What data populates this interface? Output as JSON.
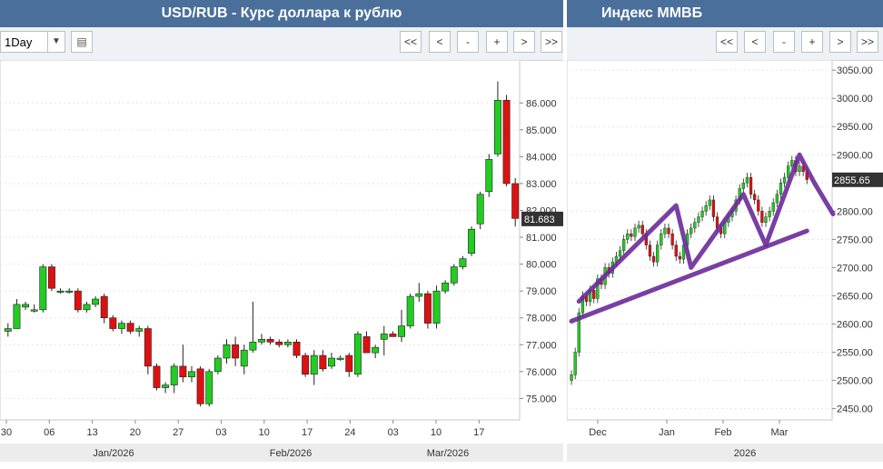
{
  "left_chart": {
    "title": "USD/RUB - Курс доллара к рублю",
    "interval": "1Day",
    "nav_buttons": [
      "<<",
      "<",
      "-",
      "+",
      ">",
      ">>"
    ],
    "day_labels": [
      "30",
      "06",
      "13",
      "20",
      "27",
      "03",
      "10",
      "17",
      "24",
      "03",
      "10",
      "17"
    ],
    "month_labels": [
      "Jan/2026",
      "Feb/2026",
      "Mar/2026"
    ],
    "last_price": "81.683",
    "colors": {
      "up": "#22cc22",
      "down": "#dd1111",
      "price_tag": "#333333"
    }
  },
  "right_chart": {
    "title": "Индекс ММВБ",
    "nav_buttons": [
      "<<",
      "<",
      "-",
      "+",
      ">",
      ">>"
    ],
    "month_labels": [
      "Dec",
      "Jan",
      "Feb",
      "Mar"
    ],
    "year_label": "2026",
    "last_price": "2855.65",
    "colors": {
      "up": "#22cc22",
      "down": "#dd1111",
      "annotation": "#6a2a9a"
    }
  },
  "chart_data": [
    {
      "type": "candlestick",
      "title": "USD/RUB - Курс доллара к рублю",
      "y_ticks": [
        "75.000",
        "76.000",
        "77.000",
        "78.000",
        "79.000",
        "80.000",
        "81.000",
        "82.000",
        "83.000",
        "84.000",
        "85.000",
        "86.000"
      ],
      "ylim": [
        74.2,
        87.6
      ],
      "x_ticks": [
        "30",
        "06",
        "13",
        "20",
        "27",
        "03",
        "10",
        "17",
        "24",
        "03",
        "10",
        "17"
      ],
      "x_months": [
        "Jan/2026",
        "Feb/2026",
        "Mar/2026"
      ],
      "candles": [
        {
          "o": 77.5,
          "h": 77.8,
          "l": 77.3,
          "c": 77.6
        },
        {
          "o": 77.6,
          "h": 78.7,
          "l": 77.6,
          "c": 78.5
        },
        {
          "o": 78.4,
          "h": 78.6,
          "l": 78.3,
          "c": 78.5
        },
        {
          "o": 78.3,
          "h": 78.5,
          "l": 78.2,
          "c": 78.3
        },
        {
          "o": 78.3,
          "h": 80.0,
          "l": 78.2,
          "c": 79.9
        },
        {
          "o": 79.9,
          "h": 80.0,
          "l": 79.0,
          "c": 79.1
        },
        {
          "o": 79.0,
          "h": 79.1,
          "l": 78.9,
          "c": 79.0
        },
        {
          "o": 79.0,
          "h": 79.1,
          "l": 78.9,
          "c": 79.0
        },
        {
          "o": 79.0,
          "h": 79.1,
          "l": 78.2,
          "c": 78.3
        },
        {
          "o": 78.3,
          "h": 78.6,
          "l": 78.2,
          "c": 78.5
        },
        {
          "o": 78.5,
          "h": 78.8,
          "l": 78.4,
          "c": 78.7
        },
        {
          "o": 78.8,
          "h": 78.9,
          "l": 77.8,
          "c": 78.0
        },
        {
          "o": 78.0,
          "h": 78.1,
          "l": 77.5,
          "c": 77.6
        },
        {
          "o": 77.6,
          "h": 77.9,
          "l": 77.4,
          "c": 77.8
        },
        {
          "o": 77.8,
          "h": 77.9,
          "l": 77.4,
          "c": 77.5
        },
        {
          "o": 77.5,
          "h": 77.7,
          "l": 77.3,
          "c": 77.6
        },
        {
          "o": 77.6,
          "h": 77.7,
          "l": 75.9,
          "c": 76.2
        },
        {
          "o": 76.2,
          "h": 76.3,
          "l": 75.3,
          "c": 75.4
        },
        {
          "o": 75.4,
          "h": 75.6,
          "l": 75.2,
          "c": 75.5
        },
        {
          "o": 75.5,
          "h": 76.3,
          "l": 75.2,
          "c": 76.2
        },
        {
          "o": 76.2,
          "h": 77.0,
          "l": 75.6,
          "c": 75.8
        },
        {
          "o": 75.8,
          "h": 76.2,
          "l": 75.6,
          "c": 76.0
        },
        {
          "o": 76.1,
          "h": 76.2,
          "l": 74.7,
          "c": 74.8
        },
        {
          "o": 74.8,
          "h": 76.1,
          "l": 74.7,
          "c": 76.0
        },
        {
          "o": 76.0,
          "h": 76.6,
          "l": 75.9,
          "c": 76.5
        },
        {
          "o": 76.5,
          "h": 77.2,
          "l": 76.3,
          "c": 77.0
        },
        {
          "o": 77.0,
          "h": 77.3,
          "l": 76.2,
          "c": 76.5
        },
        {
          "o": 76.2,
          "h": 77.0,
          "l": 75.9,
          "c": 76.8
        },
        {
          "o": 76.8,
          "h": 78.6,
          "l": 76.7,
          "c": 77.1
        },
        {
          "o": 77.1,
          "h": 77.4,
          "l": 77.0,
          "c": 77.2
        },
        {
          "o": 77.2,
          "h": 77.3,
          "l": 77.0,
          "c": 77.1
        },
        {
          "o": 77.1,
          "h": 77.2,
          "l": 76.9,
          "c": 77.0
        },
        {
          "o": 77.0,
          "h": 77.2,
          "l": 76.9,
          "c": 77.1
        },
        {
          "o": 77.1,
          "h": 77.2,
          "l": 76.5,
          "c": 76.6
        },
        {
          "o": 76.6,
          "h": 76.7,
          "l": 75.8,
          "c": 75.9
        },
        {
          "o": 75.9,
          "h": 76.8,
          "l": 75.5,
          "c": 76.6
        },
        {
          "o": 76.6,
          "h": 76.8,
          "l": 76.0,
          "c": 76.1
        },
        {
          "o": 76.2,
          "h": 76.7,
          "l": 76.1,
          "c": 76.5
        },
        {
          "o": 76.5,
          "h": 76.6,
          "l": 76.4,
          "c": 76.5
        },
        {
          "o": 76.6,
          "h": 76.7,
          "l": 75.8,
          "c": 76.0
        },
        {
          "o": 75.9,
          "h": 77.5,
          "l": 75.8,
          "c": 77.4
        },
        {
          "o": 77.3,
          "h": 77.5,
          "l": 76.7,
          "c": 76.7
        },
        {
          "o": 76.7,
          "h": 77.0,
          "l": 76.5,
          "c": 76.9
        },
        {
          "o": 77.2,
          "h": 77.7,
          "l": 76.6,
          "c": 77.4
        },
        {
          "o": 77.4,
          "h": 77.5,
          "l": 77.3,
          "c": 77.3
        },
        {
          "o": 77.3,
          "h": 78.3,
          "l": 77.1,
          "c": 77.7
        },
        {
          "o": 77.7,
          "h": 78.9,
          "l": 77.6,
          "c": 78.8
        },
        {
          "o": 78.8,
          "h": 79.3,
          "l": 78.6,
          "c": 78.9
        },
        {
          "o": 78.9,
          "h": 79.0,
          "l": 77.6,
          "c": 77.8
        },
        {
          "o": 77.8,
          "h": 79.2,
          "l": 77.6,
          "c": 79.0
        },
        {
          "o": 79.0,
          "h": 79.4,
          "l": 78.9,
          "c": 79.3
        },
        {
          "o": 79.3,
          "h": 80.0,
          "l": 79.2,
          "c": 79.9
        },
        {
          "o": 79.9,
          "h": 80.3,
          "l": 79.8,
          "c": 80.2
        },
        {
          "o": 80.4,
          "h": 81.4,
          "l": 80.3,
          "c": 81.3
        },
        {
          "o": 81.5,
          "h": 82.7,
          "l": 81.3,
          "c": 82.6
        },
        {
          "o": 82.7,
          "h": 84.1,
          "l": 82.5,
          "c": 83.9
        },
        {
          "o": 84.1,
          "h": 86.8,
          "l": 84.0,
          "c": 86.1
        },
        {
          "o": 86.1,
          "h": 86.3,
          "l": 82.9,
          "c": 83.0
        },
        {
          "o": 83.0,
          "h": 83.2,
          "l": 81.4,
          "c": 81.7
        }
      ],
      "last": 81.683
    },
    {
      "type": "candlestick",
      "title": "Индекс ММВБ",
      "y_ticks": [
        "2450.00",
        "2500.00",
        "2550.00",
        "2600.00",
        "2650.00",
        "2700.00",
        "2750.00",
        "2800.00",
        "2850.00",
        "2900.00",
        "2950.00",
        "3000.00",
        "3050.00"
      ],
      "ylim": [
        2430,
        3068
      ],
      "x_ticks": [
        "Dec",
        "Jan",
        "Feb",
        "Mar"
      ],
      "x_year": "2026",
      "closes": [
        2510,
        2550,
        2620,
        2650,
        2640,
        2660,
        2645,
        2680,
        2670,
        2700,
        2690,
        2710,
        2720,
        2730,
        2750,
        2760,
        2755,
        2770,
        2775,
        2760,
        2740,
        2720,
        2710,
        2740,
        2760,
        2770,
        2760,
        2740,
        2720,
        2715,
        2740,
        2760,
        2770,
        2780,
        2790,
        2800,
        2810,
        2820,
        2790,
        2770,
        2760,
        2780,
        2790,
        2800,
        2820,
        2840,
        2850,
        2860,
        2830,
        2820,
        2800,
        2780,
        2790,
        2800,
        2815,
        2830,
        2850,
        2860,
        2880,
        2890,
        2870,
        2880,
        2870,
        2856
      ],
      "last": 2855.65,
      "annotations": [
        {
          "kind": "support",
          "points": [
            [
              0,
              2605
            ],
            [
              63,
              2765
            ]
          ]
        },
        {
          "kind": "zigzag",
          "points": [
            [
              2,
              2640
            ],
            [
              28,
              2810
            ],
            [
              32,
              2700
            ],
            [
              46,
              2830
            ],
            [
              52,
              2740
            ],
            [
              61,
              2900
            ],
            [
              65,
              2850
            ],
            [
              70,
              2795
            ]
          ]
        }
      ]
    }
  ]
}
